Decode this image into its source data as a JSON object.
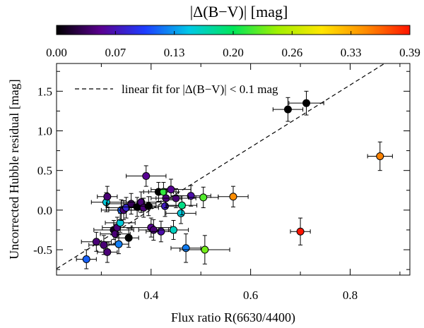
{
  "chart_data": {
    "type": "scatter",
    "xlabel": "Flux ratio R(6630/4400)",
    "ylabel": "Uncorrected Hubble residual  [mag]",
    "xlim": [
      0.21,
      0.92
    ],
    "ylim": [
      -0.82,
      1.85
    ],
    "x_ticks": [
      {
        "value": 0.4,
        "label": "0.4"
      },
      {
        "value": 0.6,
        "label": "0.6"
      },
      {
        "value": 0.8,
        "label": "0.8"
      }
    ],
    "y_ticks": [
      {
        "value": -0.5,
        "label": "-0.5"
      },
      {
        "value": 0.0,
        "label": "0.0"
      },
      {
        "value": 0.5,
        "label": "0.5"
      },
      {
        "value": 1.0,
        "label": "1.0"
      },
      {
        "value": 1.5,
        "label": "1.5"
      }
    ],
    "colorbar": {
      "title": "|Δ(B−V)|   [mag]",
      "range": [
        0.0,
        0.39
      ],
      "colormap": "rainbow",
      "stops": [
        "#000000",
        "#5a0090",
        "#1e3cff",
        "#00c8e6",
        "#00e65a",
        "#a0f000",
        "#ffe600",
        "#ff8c00",
        "#ff1400"
      ],
      "ticks": [
        {
          "value": 0.0,
          "label": "0.00"
        },
        {
          "value": 0.065,
          "label": "0.07"
        },
        {
          "value": 0.13,
          "label": "0.13"
        },
        {
          "value": 0.195,
          "label": "0.20"
        },
        {
          "value": 0.26,
          "label": "0.26"
        },
        {
          "value": 0.325,
          "label": "0.33"
        },
        {
          "value": 0.39,
          "label": "0.39"
        }
      ]
    },
    "legend": {
      "placement": "top-left",
      "entries": [
        {
          "label": "linear fit for |Δ(B−V)| < 0.1 mag",
          "style": "dashed"
        }
      ]
    },
    "fit_line": {
      "x": [
        0.21,
        0.92
      ],
      "y": [
        -0.74,
        2.05
      ]
    },
    "points": [
      {
        "x": 0.27,
        "y": -0.62,
        "xerr": 0.02,
        "yerr": 0.12,
        "c": 0.11
      },
      {
        "x": 0.29,
        "y": -0.4,
        "xerr": 0.03,
        "yerr": 0.12,
        "c": 0.04
      },
      {
        "x": 0.305,
        "y": -0.44,
        "xerr": 0.03,
        "yerr": 0.12,
        "c": 0.04
      },
      {
        "x": 0.312,
        "y": -0.53,
        "xerr": 0.02,
        "yerr": 0.13,
        "c": 0.04
      },
      {
        "x": 0.31,
        "y": 0.1,
        "xerr": 0.03,
        "yerr": 0.12,
        "c": 0.15
      },
      {
        "x": 0.312,
        "y": 0.17,
        "xerr": 0.02,
        "yerr": 0.13,
        "c": 0.04
      },
      {
        "x": 0.325,
        "y": -0.25,
        "xerr": 0.04,
        "yerr": 0.12,
        "c": 0.01
      },
      {
        "x": 0.328,
        "y": -0.3,
        "xerr": 0.03,
        "yerr": 0.12,
        "c": 0.04
      },
      {
        "x": 0.332,
        "y": -0.22,
        "xerr": 0.03,
        "yerr": 0.13,
        "c": 0.04
      },
      {
        "x": 0.335,
        "y": -0.43,
        "xerr": 0.02,
        "yerr": 0.12,
        "c": 0.12
      },
      {
        "x": 0.338,
        "y": -0.16,
        "xerr": 0.03,
        "yerr": 0.12,
        "c": 0.15
      },
      {
        "x": 0.34,
        "y": 0.0,
        "xerr": 0.04,
        "yerr": 0.13,
        "c": 0.11
      },
      {
        "x": 0.345,
        "y": 0.0,
        "xerr": 0.03,
        "yerr": 0.12,
        "c": 0.04
      },
      {
        "x": 0.35,
        "y": 0.03,
        "xerr": 0.04,
        "yerr": 0.13,
        "c": 0.08
      },
      {
        "x": 0.355,
        "y": -0.35,
        "xerr": 0.02,
        "yerr": 0.12,
        "c": 0.0
      },
      {
        "x": 0.36,
        "y": 0.08,
        "xerr": 0.05,
        "yerr": 0.13,
        "c": 0.03
      },
      {
        "x": 0.372,
        "y": 0.04,
        "xerr": 0.03,
        "yerr": 0.12,
        "c": 0.0
      },
      {
        "x": 0.38,
        "y": 0.1,
        "xerr": 0.04,
        "yerr": 0.13,
        "c": 0.04
      },
      {
        "x": 0.385,
        "y": 0.03,
        "xerr": 0.03,
        "yerr": 0.12,
        "c": 0.04
      },
      {
        "x": 0.39,
        "y": 0.43,
        "xerr": 0.04,
        "yerr": 0.13,
        "c": 0.05
      },
      {
        "x": 0.395,
        "y": 0.05,
        "xerr": 0.03,
        "yerr": 0.12,
        "c": 0.0
      },
      {
        "x": 0.4,
        "y": -0.22,
        "xerr": 0.04,
        "yerr": 0.12,
        "c": 0.05
      },
      {
        "x": 0.405,
        "y": -0.25,
        "xerr": 0.03,
        "yerr": 0.13,
        "c": 0.04
      },
      {
        "x": 0.415,
        "y": 0.23,
        "xerr": 0.03,
        "yerr": 0.12,
        "c": 0.0
      },
      {
        "x": 0.42,
        "y": -0.27,
        "xerr": 0.03,
        "yerr": 0.13,
        "c": 0.06
      },
      {
        "x": 0.425,
        "y": 0.23,
        "xerr": 0.03,
        "yerr": 0.12,
        "c": 0.21
      },
      {
        "x": 0.428,
        "y": 0.05,
        "xerr": 0.04,
        "yerr": 0.13,
        "c": 0.07
      },
      {
        "x": 0.43,
        "y": 0.15,
        "xerr": 0.03,
        "yerr": 0.12,
        "c": 0.04
      },
      {
        "x": 0.44,
        "y": 0.26,
        "xerr": 0.04,
        "yerr": 0.13,
        "c": 0.05
      },
      {
        "x": 0.445,
        "y": -0.25,
        "xerr": 0.03,
        "yerr": 0.12,
        "c": 0.16
      },
      {
        "x": 0.45,
        "y": 0.15,
        "xerr": 0.04,
        "yerr": 0.12,
        "c": 0.04
      },
      {
        "x": 0.46,
        "y": -0.04,
        "xerr": 0.03,
        "yerr": 0.13,
        "c": 0.15
      },
      {
        "x": 0.462,
        "y": 0.06,
        "xerr": 0.03,
        "yerr": 0.12,
        "c": 0.18
      },
      {
        "x": 0.47,
        "y": -0.48,
        "xerr": 0.03,
        "yerr": 0.18,
        "c": 0.12
      },
      {
        "x": 0.48,
        "y": 0.18,
        "xerr": 0.04,
        "yerr": 0.13,
        "c": 0.06
      },
      {
        "x": 0.505,
        "y": 0.16,
        "xerr": 0.03,
        "yerr": 0.13,
        "c": 0.22
      },
      {
        "x": 0.508,
        "y": -0.5,
        "xerr": 0.05,
        "yerr": 0.18,
        "c": 0.23
      },
      {
        "x": 0.565,
        "y": 0.17,
        "xerr": 0.03,
        "yerr": 0.13,
        "c": 0.34
      },
      {
        "x": 0.675,
        "y": 1.27,
        "xerr": 0.03,
        "yerr": 0.15,
        "c": 0.0
      },
      {
        "x": 0.7,
        "y": -0.27,
        "xerr": 0.02,
        "yerr": 0.17,
        "c": 0.39
      },
      {
        "x": 0.712,
        "y": 1.35,
        "xerr": 0.035,
        "yerr": 0.15,
        "c": 0.0
      },
      {
        "x": 0.86,
        "y": 0.68,
        "xerr": 0.025,
        "yerr": 0.18,
        "c": 0.345
      }
    ]
  }
}
